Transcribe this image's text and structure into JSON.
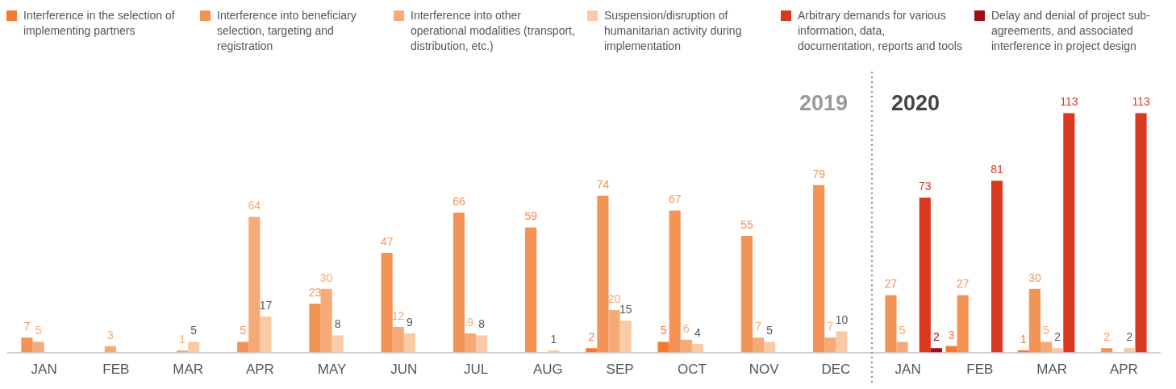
{
  "chart_data": {
    "type": "bar",
    "categories": [
      "JAN",
      "FEB",
      "MAR",
      "APR",
      "MAY",
      "JUN",
      "JUL",
      "AUG",
      "SEP",
      "OCT",
      "NOV",
      "DEC",
      "JAN",
      "FEB",
      "MAR",
      "APR"
    ],
    "series": [
      {
        "name": "Interference in the selection of implementing partners",
        "color": "#f47a30",
        "values": [
          null,
          null,
          null,
          null,
          null,
          null,
          null,
          null,
          2,
          5,
          null,
          null,
          null,
          3,
          1,
          null
        ]
      },
      {
        "name": "Interference into beneficiary selection, targeting and registration",
        "color": "#f49356",
        "values": [
          7,
          null,
          null,
          5,
          23,
          47,
          66,
          59,
          74,
          67,
          55,
          79,
          27,
          27,
          30,
          2
        ]
      },
      {
        "name": "Interference into other operational modalities (transport, distribution, etc.)",
        "color": "#f6aa78",
        "values": [
          5,
          3,
          1,
          64,
          30,
          12,
          9,
          null,
          20,
          6,
          7,
          7,
          5,
          null,
          5,
          null
        ]
      },
      {
        "name": "Suspension/disruption of humanitarian activity during implementation",
        "color": "#fac9a5",
        "values": [
          null,
          null,
          5,
          17,
          8,
          9,
          8,
          1,
          15,
          4,
          5,
          10,
          null,
          null,
          2,
          2
        ]
      },
      {
        "name": "Arbitrary demands for various information, data, documentation, reports and tools",
        "color": "#d9391f",
        "values": [
          null,
          null,
          null,
          null,
          null,
          null,
          null,
          null,
          null,
          null,
          null,
          null,
          73,
          81,
          113,
          113
        ]
      },
      {
        "name": "Delay and denial of project sub-agreements, and associated interference in project design",
        "color": "#a00d14",
        "values": [
          null,
          null,
          null,
          null,
          null,
          null,
          null,
          null,
          null,
          null,
          null,
          null,
          2,
          null,
          null,
          null
        ]
      }
    ],
    "annotations": [
      "2019",
      "2020"
    ],
    "data_labels": true,
    "legend": "top",
    "grid": false
  }
}
